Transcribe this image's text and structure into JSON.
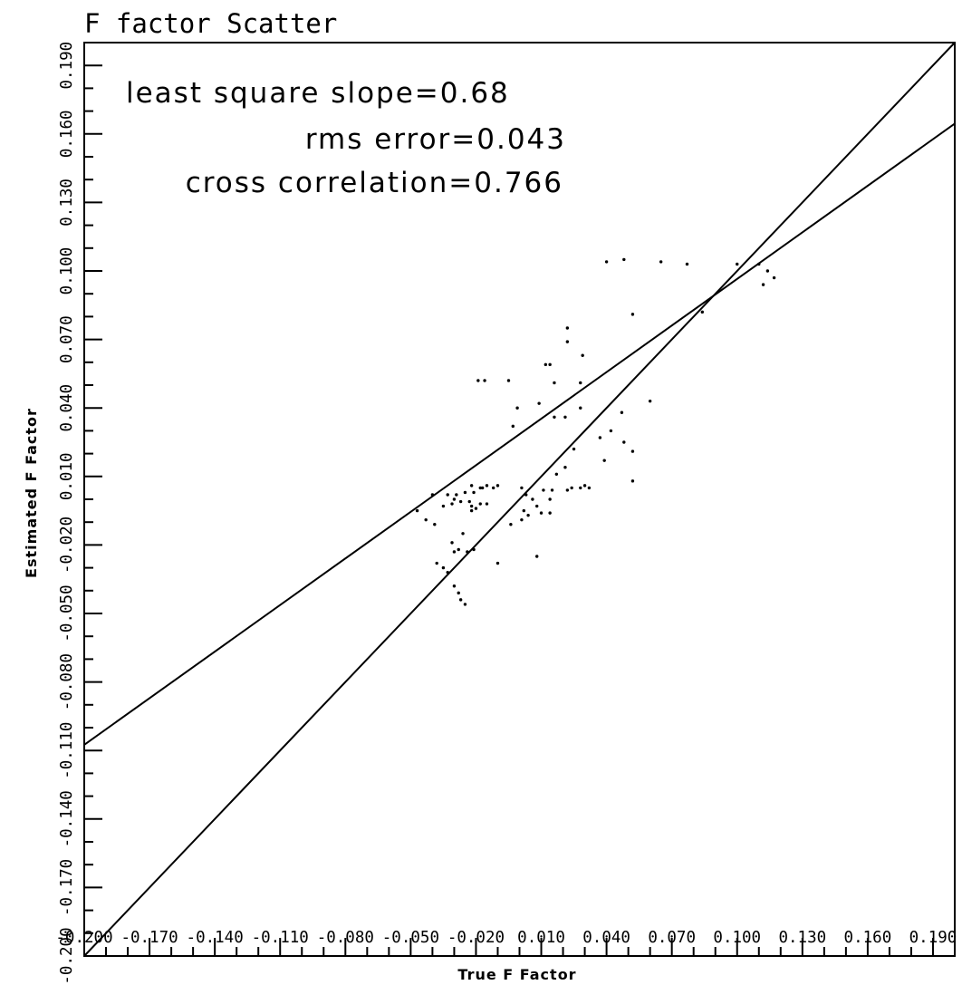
{
  "chart_data": {
    "type": "scatter",
    "title": "F factor Scatter",
    "xlabel": "True F Factor",
    "ylabel": "Estimated F Factor",
    "xlim": [
      -0.2,
      0.2
    ],
    "ylim": [
      -0.2,
      0.2
    ],
    "x_ticks": [
      "-0.200",
      "-0.170",
      "-0.140",
      "-0.110",
      "-0.080",
      "-0.050",
      "-0.020",
      "0.010",
      "0.040",
      "0.070",
      "0.100",
      "0.130",
      "0.160",
      "0.190"
    ],
    "y_ticks": [
      "-0.200",
      "-0.170",
      "-0.140",
      "-0.110",
      "-0.080",
      "-0.050",
      "-0.020",
      "0.010",
      "0.040",
      "0.070",
      "0.100",
      "0.130",
      "0.160",
      "0.190"
    ],
    "annotations": [
      "least square slope=0.68",
      "rms error=0.043",
      "cross correlation=0.766"
    ],
    "lines": [
      {
        "x": [
          -0.2,
          0.2
        ],
        "y": [
          -0.2,
          0.2
        ]
      },
      {
        "x": [
          -0.2,
          0.2
        ],
        "y": [
          -0.1075,
          0.1645
        ]
      }
    ],
    "points": [
      [
        0.04,
        0.104
      ],
      [
        0.048,
        0.105
      ],
      [
        0.065,
        0.104
      ],
      [
        0.077,
        0.103
      ],
      [
        0.1,
        0.103
      ],
      [
        0.11,
        0.103
      ],
      [
        0.114,
        0.1
      ],
      [
        0.117,
        0.097
      ],
      [
        0.112,
        0.094
      ],
      [
        0.084,
        0.082
      ],
      [
        0.052,
        0.081
      ],
      [
        0.022,
        0.075
      ],
      [
        0.022,
        0.069
      ],
      [
        0.029,
        0.063
      ],
      [
        0.012,
        0.059
      ],
      [
        0.014,
        0.059
      ],
      [
        -0.019,
        0.052
      ],
      [
        -0.016,
        0.052
      ],
      [
        -0.005,
        0.052
      ],
      [
        0.016,
        0.051
      ],
      [
        0.028,
        0.051
      ],
      [
        0.06,
        0.043
      ],
      [
        0.009,
        0.042
      ],
      [
        0.028,
        0.04
      ],
      [
        -0.001,
        0.04
      ],
      [
        0.021,
        0.036
      ],
      [
        0.016,
        0.036
      ],
      [
        0.047,
        0.038
      ],
      [
        -0.003,
        0.032
      ],
      [
        0.042,
        0.03
      ],
      [
        0.037,
        0.027
      ],
      [
        0.048,
        0.025
      ],
      [
        0.025,
        0.022
      ],
      [
        0.052,
        0.021
      ],
      [
        0.039,
        0.017
      ],
      [
        0.021,
        0.014
      ],
      [
        0.017,
        0.011
      ],
      [
        0.052,
        0.008
      ],
      [
        0.03,
        0.006
      ],
      [
        0.032,
        0.005
      ],
      [
        0.024,
        0.005
      ],
      [
        0.028,
        0.005
      ],
      [
        0.022,
        0.004
      ],
      [
        -0.01,
        0.006
      ],
      [
        -0.015,
        0.006
      ],
      [
        -0.012,
        0.005
      ],
      [
        -0.017,
        0.005
      ],
      [
        -0.022,
        0.006
      ],
      [
        -0.021,
        0.003
      ],
      [
        -0.018,
        0.005
      ],
      [
        0.001,
        0.005
      ],
      [
        0.011,
        0.004
      ],
      [
        0.015,
        0.004
      ],
      [
        0.014,
        0.0
      ],
      [
        0.003,
        0.002
      ],
      [
        0.006,
        0.0
      ],
      [
        -0.04,
        0.002
      ],
      [
        -0.033,
        0.002
      ],
      [
        -0.029,
        0.002
      ],
      [
        -0.025,
        0.003
      ],
      [
        -0.03,
        0.0
      ],
      [
        -0.027,
        -0.001
      ],
      [
        -0.023,
        -0.001
      ],
      [
        -0.031,
        -0.002
      ],
      [
        -0.022,
        -0.003
      ],
      [
        -0.018,
        -0.002
      ],
      [
        -0.015,
        -0.002
      ],
      [
        -0.02,
        -0.004
      ],
      [
        -0.022,
        -0.005
      ],
      [
        -0.035,
        -0.003
      ],
      [
        -0.047,
        -0.005
      ],
      [
        -0.043,
        -0.009
      ],
      [
        -0.039,
        -0.011
      ],
      [
        0.008,
        -0.003
      ],
      [
        0.002,
        -0.005
      ],
      [
        0.004,
        -0.007
      ],
      [
        0.001,
        -0.009
      ],
      [
        -0.004,
        -0.011
      ],
      [
        0.01,
        -0.006
      ],
      [
        0.014,
        -0.006
      ],
      [
        -0.026,
        -0.015
      ],
      [
        -0.031,
        -0.019
      ],
      [
        -0.03,
        -0.023
      ],
      [
        -0.028,
        -0.022
      ],
      [
        -0.024,
        -0.023
      ],
      [
        -0.021,
        -0.022
      ],
      [
        -0.038,
        -0.028
      ],
      [
        -0.035,
        -0.03
      ],
      [
        -0.033,
        -0.032
      ],
      [
        -0.03,
        -0.038
      ],
      [
        -0.028,
        -0.041
      ],
      [
        -0.027,
        -0.044
      ],
      [
        -0.025,
        -0.046
      ],
      [
        -0.01,
        -0.028
      ],
      [
        0.008,
        -0.025
      ]
    ]
  }
}
